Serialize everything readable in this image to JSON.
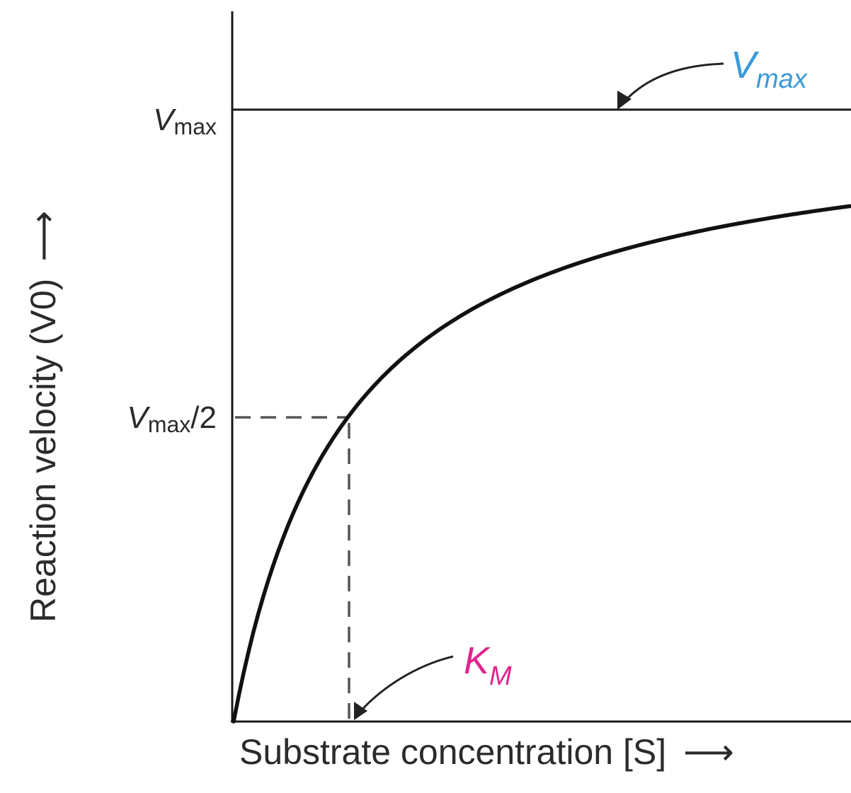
{
  "chart_data": {
    "type": "line",
    "xlabel": "Substrate concentration [S]",
    "ylabel": "Reaction velocity (V0)",
    "x_axis_arrow": "⟶",
    "y_axis_arrow": "⟶",
    "yticks": [
      {
        "main": "V",
        "sub": "max",
        "rest": ""
      },
      {
        "main": "V",
        "sub": "max",
        "rest": "/2"
      }
    ],
    "xtick": {
      "main": "K",
      "sub": "M"
    },
    "annotations": {
      "vmax": {
        "main": "V",
        "sub": "max",
        "color": "#3a9ad9"
      },
      "km": {
        "main": "K",
        "sub": "M",
        "color": "#e0268e"
      }
    },
    "curve": {
      "vmax": 1.0,
      "km": 1.0,
      "x": [
        0,
        0.1,
        0.25,
        0.5,
        0.75,
        1.0,
        1.5,
        2.0,
        3.0,
        4.0,
        5.0,
        6.0
      ],
      "y": [
        0,
        0.091,
        0.2,
        0.333,
        0.429,
        0.5,
        0.6,
        0.667,
        0.75,
        0.8,
        0.833,
        0.857
      ]
    },
    "xlim": [
      0,
      6.0
    ],
    "ylim": [
      0,
      1.0
    ],
    "line_color": "#111111",
    "grid": false,
    "legend": "none"
  }
}
